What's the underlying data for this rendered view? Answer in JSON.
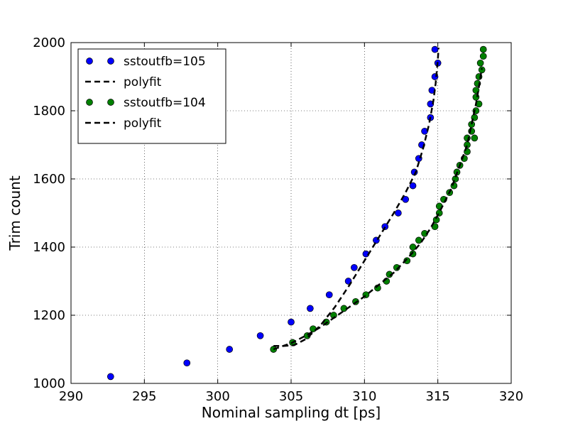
{
  "chart_data": {
    "type": "scatter",
    "title": "",
    "xlabel": "Nominal sampling dt [ps]",
    "ylabel": "Trim count",
    "xlim": [
      290,
      320
    ],
    "ylim": [
      1000,
      2000
    ],
    "xticks": [
      290,
      295,
      300,
      305,
      310,
      315,
      320
    ],
    "yticks": [
      1000,
      1200,
      1400,
      1600,
      1800,
      2000
    ],
    "grid": true,
    "legend_position": "top-left",
    "series": [
      {
        "name": "sstoutfb=105",
        "kind": "points",
        "color": "#0000ff",
        "points": [
          [
            292.7,
            1020
          ],
          [
            297.9,
            1060
          ],
          [
            300.8,
            1100
          ],
          [
            302.9,
            1140
          ],
          [
            305.0,
            1180
          ],
          [
            306.3,
            1220
          ],
          [
            307.6,
            1260
          ],
          [
            308.9,
            1300
          ],
          [
            309.3,
            1340
          ],
          [
            310.1,
            1380
          ],
          [
            310.8,
            1420
          ],
          [
            311.4,
            1460
          ],
          [
            312.3,
            1500
          ],
          [
            312.8,
            1540
          ],
          [
            313.3,
            1580
          ],
          [
            313.4,
            1620
          ],
          [
            313.7,
            1660
          ],
          [
            313.9,
            1700
          ],
          [
            314.1,
            1740
          ],
          [
            314.5,
            1780
          ],
          [
            314.5,
            1820
          ],
          [
            314.6,
            1860
          ],
          [
            314.8,
            1900
          ],
          [
            315.0,
            1940
          ],
          [
            314.8,
            1980
          ]
        ]
      },
      {
        "name": "polyfit",
        "kind": "dashed-line",
        "color": "#000000",
        "points": [
          [
            303.8,
            1110
          ],
          [
            304.5,
            1110
          ],
          [
            305.2,
            1112
          ],
          [
            306.0,
            1130
          ],
          [
            307.0,
            1170
          ],
          [
            308.0,
            1225
          ],
          [
            309.0,
            1290
          ],
          [
            310.0,
            1360
          ],
          [
            311.0,
            1430
          ],
          [
            312.0,
            1500
          ],
          [
            312.8,
            1560
          ],
          [
            313.5,
            1620
          ],
          [
            314.0,
            1690
          ],
          [
            314.4,
            1760
          ],
          [
            314.7,
            1830
          ],
          [
            314.85,
            1880
          ],
          [
            315.0,
            1950
          ],
          [
            315.05,
            1985
          ]
        ]
      },
      {
        "name": "sstoutfb=104",
        "kind": "points",
        "color": "#008000",
        "points": [
          [
            303.8,
            1100
          ],
          [
            305.1,
            1120
          ],
          [
            306.1,
            1140
          ],
          [
            306.5,
            1160
          ],
          [
            307.4,
            1180
          ],
          [
            307.9,
            1200
          ],
          [
            308.6,
            1220
          ],
          [
            309.4,
            1240
          ],
          [
            310.1,
            1260
          ],
          [
            310.9,
            1280
          ],
          [
            311.5,
            1300
          ],
          [
            311.7,
            1320
          ],
          [
            312.2,
            1340
          ],
          [
            312.9,
            1360
          ],
          [
            313.3,
            1380
          ],
          [
            313.3,
            1400
          ],
          [
            313.7,
            1420
          ],
          [
            314.1,
            1440
          ],
          [
            314.8,
            1460
          ],
          [
            314.9,
            1480
          ],
          [
            315.1,
            1500
          ],
          [
            315.1,
            1520
          ],
          [
            315.4,
            1540
          ],
          [
            315.8,
            1560
          ],
          [
            316.1,
            1580
          ],
          [
            316.2,
            1600
          ],
          [
            316.3,
            1620
          ],
          [
            316.5,
            1640
          ],
          [
            316.8,
            1660
          ],
          [
            317.0,
            1680
          ],
          [
            317.0,
            1700
          ],
          [
            317.0,
            1720
          ],
          [
            317.3,
            1740
          ],
          [
            317.3,
            1760
          ],
          [
            317.5,
            1780
          ],
          [
            317.6,
            1800
          ],
          [
            317.8,
            1820
          ],
          [
            317.6,
            1840
          ],
          [
            317.6,
            1860
          ],
          [
            317.7,
            1880
          ],
          [
            317.8,
            1900
          ],
          [
            318.0,
            1920
          ],
          [
            317.9,
            1940
          ],
          [
            318.1,
            1960
          ],
          [
            318.1,
            1980
          ],
          [
            317.5,
            1720
          ]
        ]
      },
      {
        "name": "polyfit",
        "kind": "dashed-line",
        "color": "#000000",
        "points": [
          [
            303.8,
            1100
          ],
          [
            305.0,
            1118
          ],
          [
            306.0,
            1140
          ],
          [
            307.0,
            1165
          ],
          [
            308.0,
            1195
          ],
          [
            309.0,
            1225
          ],
          [
            310.0,
            1255
          ],
          [
            311.0,
            1290
          ],
          [
            312.0,
            1325
          ],
          [
            313.0,
            1370
          ],
          [
            313.8,
            1410
          ],
          [
            314.5,
            1455
          ],
          [
            315.2,
            1510
          ],
          [
            315.9,
            1570
          ],
          [
            316.5,
            1640
          ],
          [
            317.0,
            1700
          ],
          [
            317.3,
            1760
          ],
          [
            317.6,
            1820
          ],
          [
            317.8,
            1870
          ],
          [
            318.0,
            1925
          ]
        ]
      }
    ]
  }
}
